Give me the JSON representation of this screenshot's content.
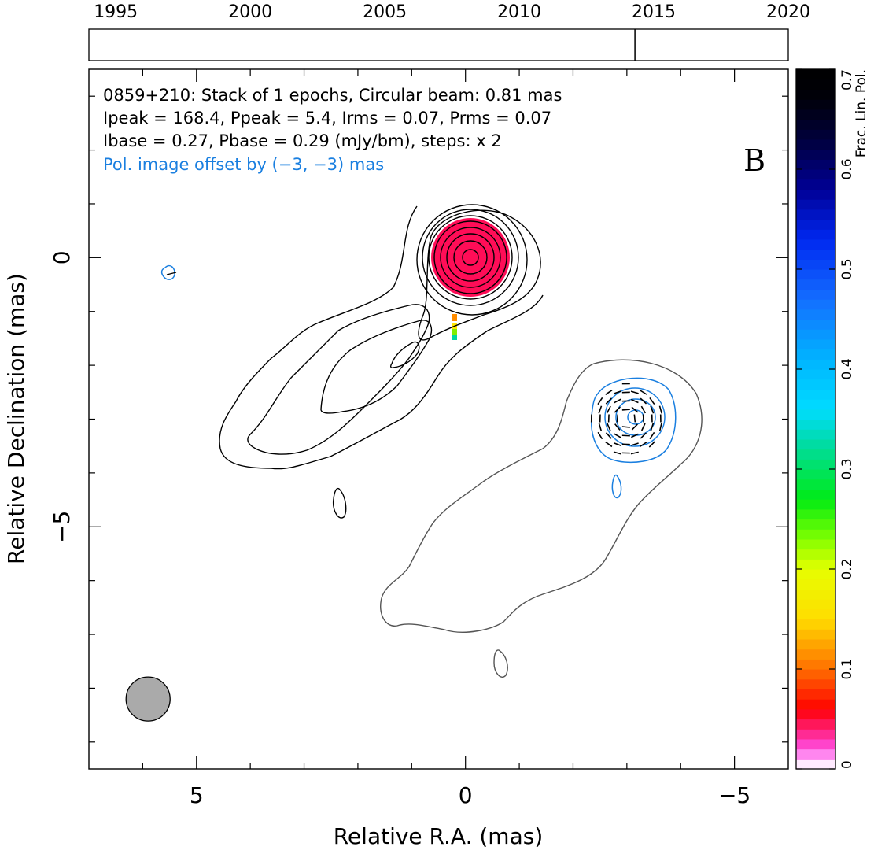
{
  "chart_data": {
    "type": "contour",
    "panel_label": "B",
    "annotations": {
      "line1": "0859+210: Stack of 1 epochs, Circular beam: 0.81 mas",
      "line2": "Ipeak = 168.4, Ppeak = 5.4, Irms = 0.07, Prms = 0.07",
      "line3": "Ibase = 0.27, Pbase = 0.29 (mJy/bm), steps: x 2",
      "line4": "Pol. image offset by (−3, −3) mas"
    },
    "xlabel": "Relative R.A. (mas)",
    "ylabel": "Relative Declination (mas)",
    "xlim": [
      7.0,
      -6.0
    ],
    "ylim": [
      -9.5,
      3.5
    ],
    "xticks": [
      5,
      0,
      -5
    ],
    "xtick_labels": [
      "5",
      "0",
      "−5"
    ],
    "yticks": [
      0,
      -5
    ],
    "ytick_labels": [
      "0",
      "−5"
    ],
    "beam": {
      "ra": 5.9,
      "dec": -8.2,
      "diameter_mas": 0.81,
      "color": "#aaaaaa"
    },
    "timeline": {
      "range": [
        1994.0,
        2020.0
      ],
      "ticks": [
        1995,
        2000,
        2005,
        2010,
        2015,
        2020
      ],
      "tick_labels": [
        "1995",
        "2000",
        "2005",
        "2010",
        "2015",
        "2020"
      ],
      "epochs": [
        2014.3
      ]
    },
    "colorbar": {
      "label": "Frac. Lin. Pol.",
      "range": [
        0,
        0.7
      ],
      "ticks": [
        0,
        0.1,
        0.2,
        0.3,
        0.4,
        0.5,
        0.6,
        0.7
      ],
      "tick_labels": [
        "0",
        "0.1",
        "0.2",
        "0.3",
        "0.4",
        "0.5",
        "0.6",
        "0.7"
      ]
    },
    "core": {
      "ra": 0.0,
      "dec": 0.0
    },
    "pol_core": {
      "ra": -3.0,
      "dec": -3.0
    },
    "colors": {
      "intensity_contours": "#000000",
      "shifted_intensity_contour": "#555555",
      "pol_contours": "#1a7fe0",
      "evpa_ticks": "#000000",
      "frac_pol_core": "#ff0d57"
    }
  }
}
